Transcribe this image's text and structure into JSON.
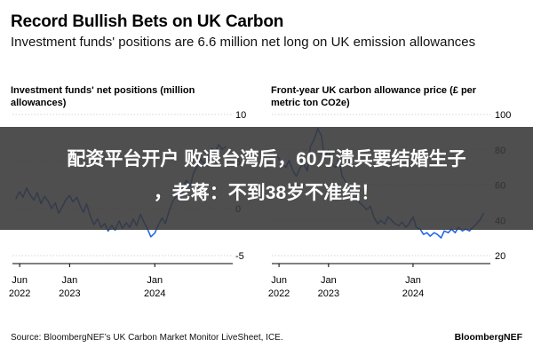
{
  "header": {
    "title": "Record Bullish Bets on UK Carbon",
    "subtitle": "Investment funds' positions are 6.6 million net long on UK emission allowances"
  },
  "footer": {
    "source": "Source: BloombergNEF’s UK Carbon Market Monitor LiveSheet, ICE.",
    "brand": "BloombergNEF"
  },
  "overlay": {
    "line1": "配资平台开户 败退台湾后，60万溃兵要结婚生子",
    "line2": "，老蒋：不到38岁不准结！"
  },
  "colors": {
    "line": "#2466e6",
    "axis": "#000000",
    "grid": "#d6d6d6",
    "overlay": "#373737"
  },
  "chart_data": [
    {
      "type": "line",
      "title": "Investment funds' net positions (million allowances)",
      "xlabel": "",
      "ylabel": "",
      "xlim": [
        "2022-05-01",
        "2024-11-30"
      ],
      "ylim": [
        -5,
        10
      ],
      "y_ticks": [
        10,
        5,
        0,
        -5
      ],
      "x_ticks": [
        {
          "date": "2022-06-01",
          "label": [
            "Jun",
            "2022"
          ]
        },
        {
          "date": "2023-01-01",
          "label": [
            "Jan",
            "2023"
          ]
        },
        {
          "date": "2024-01-01",
          "label": [
            "Jan",
            "2024"
          ]
        }
      ],
      "grid": true,
      "series": [
        {
          "x": [
            "2022-05-15",
            "2022-06-01",
            "2022-06-15",
            "2022-07-01",
            "2022-07-15",
            "2022-08-01",
            "2022-08-15",
            "2022-09-01",
            "2022-09-15",
            "2022-10-01",
            "2022-10-15",
            "2022-11-01",
            "2022-11-15",
            "2022-12-01",
            "2022-12-15",
            "2023-01-01",
            "2023-01-15",
            "2023-02-01",
            "2023-02-15",
            "2023-03-01",
            "2023-03-15",
            "2023-04-01",
            "2023-04-15",
            "2023-05-01",
            "2023-05-15",
            "2023-06-01",
            "2023-06-15",
            "2023-07-01",
            "2023-07-15",
            "2023-08-01",
            "2023-08-15",
            "2023-09-01",
            "2023-09-15",
            "2023-10-01",
            "2023-10-15",
            "2023-11-01",
            "2023-11-15",
            "2023-12-01",
            "2023-12-15",
            "2024-01-01",
            "2024-01-15",
            "2024-02-01",
            "2024-02-15",
            "2024-03-01",
            "2024-03-15",
            "2024-04-01",
            "2024-04-15",
            "2024-05-01",
            "2024-05-15",
            "2024-06-01",
            "2024-06-15",
            "2024-07-01",
            "2024-07-15",
            "2024-08-01",
            "2024-08-15",
            "2024-09-01",
            "2024-09-15",
            "2024-10-01",
            "2024-10-15",
            "2024-11-01"
          ],
          "y": [
            1.0,
            1.8,
            1.2,
            2.2,
            1.5,
            0.9,
            1.7,
            0.5,
            1.3,
            0.8,
            0.0,
            0.6,
            -0.5,
            0.2,
            0.9,
            1.4,
            0.7,
            1.2,
            0.3,
            -0.4,
            0.5,
            -0.9,
            -1.7,
            -1.1,
            -2.0,
            -1.6,
            -2.4,
            -1.8,
            -2.3,
            -1.3,
            -2.1,
            -1.5,
            -2.0,
            -1.1,
            -1.8,
            -0.6,
            -1.4,
            -2.2,
            -3.0,
            -2.6,
            -1.8,
            -1.0,
            -1.6,
            -0.4,
            0.6,
            1.4,
            0.9,
            2.2,
            3.0,
            2.4,
            3.8,
            4.5,
            5.3,
            4.7,
            5.8,
            6.4,
            6.0,
            6.8,
            6.3,
            6.6
          ]
        }
      ]
    },
    {
      "type": "line",
      "title": "Front-year UK carbon allowance price (£ per metric ton CO2e)",
      "xlabel": "",
      "ylabel": "",
      "xlim": [
        "2022-05-01",
        "2024-11-30"
      ],
      "ylim": [
        20,
        100
      ],
      "y_ticks": [
        100,
        80,
        60,
        40,
        20
      ],
      "x_ticks": [
        {
          "date": "2022-06-01",
          "label": [
            "Jun",
            "2022"
          ]
        },
        {
          "date": "2023-01-01",
          "label": [
            "Jan",
            "2023"
          ]
        },
        {
          "date": "2024-01-01",
          "label": [
            "Jan",
            "2024"
          ]
        }
      ],
      "grid": true,
      "series": [
        {
          "x": [
            "2022-05-15",
            "2022-06-01",
            "2022-06-15",
            "2022-07-01",
            "2022-07-15",
            "2022-08-01",
            "2022-08-15",
            "2022-09-01",
            "2022-09-15",
            "2022-10-01",
            "2022-10-15",
            "2022-11-01",
            "2022-11-15",
            "2022-12-01",
            "2022-12-15",
            "2023-01-01",
            "2023-01-15",
            "2023-02-01",
            "2023-02-15",
            "2023-03-01",
            "2023-03-15",
            "2023-04-01",
            "2023-04-15",
            "2023-05-01",
            "2023-05-15",
            "2023-06-01",
            "2023-06-15",
            "2023-07-01",
            "2023-07-15",
            "2023-08-01",
            "2023-08-15",
            "2023-09-01",
            "2023-09-15",
            "2023-10-01",
            "2023-10-15",
            "2023-11-01",
            "2023-11-15",
            "2023-12-01",
            "2023-12-15",
            "2024-01-01",
            "2024-01-15",
            "2024-02-01",
            "2024-02-15",
            "2024-03-01",
            "2024-03-15",
            "2024-04-01",
            "2024-04-15",
            "2024-05-01",
            "2024-05-15",
            "2024-06-01",
            "2024-06-15",
            "2024-07-01",
            "2024-07-15",
            "2024-08-01",
            "2024-08-15",
            "2024-09-01",
            "2024-09-15",
            "2024-10-01",
            "2024-10-15",
            "2024-11-01"
          ],
          "y": [
            78,
            75,
            72,
            70,
            74,
            68,
            65,
            70,
            72,
            68,
            82,
            86,
            92,
            88,
            75,
            80,
            72,
            70,
            74,
            65,
            62,
            58,
            60,
            56,
            50,
            48,
            46,
            48,
            42,
            38,
            40,
            38,
            42,
            40,
            38,
            37,
            39,
            36,
            38,
            42,
            36,
            35,
            32,
            33,
            31,
            33,
            32,
            30,
            34,
            33,
            35,
            33,
            36,
            34,
            35,
            34,
            36,
            38,
            40,
            44
          ]
        }
      ]
    }
  ]
}
